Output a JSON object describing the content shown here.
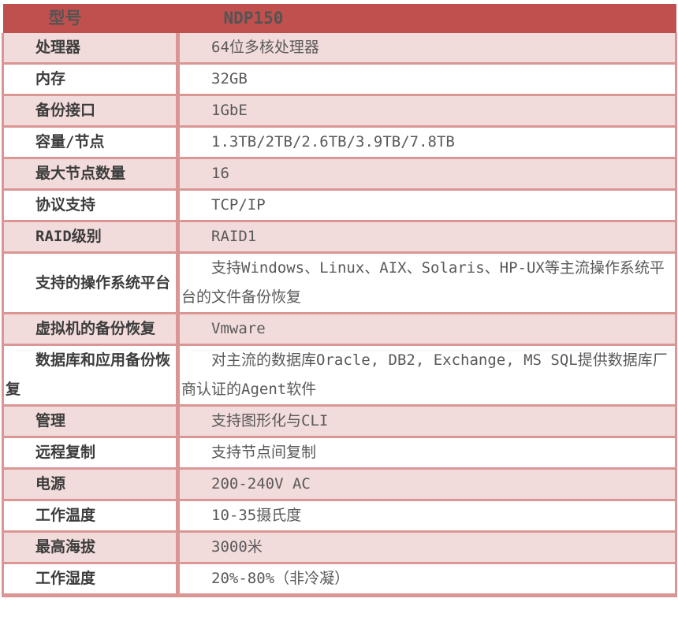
{
  "table": {
    "header": {
      "label": "型号",
      "value": "NDP150"
    },
    "rows": [
      {
        "label": "处理器",
        "value": "64位多核处理器"
      },
      {
        "label": "内存",
        "value": "32GB"
      },
      {
        "label": "备份接口",
        "value": "1GbE"
      },
      {
        "label": "容量/节点",
        "value": "1.3TB/2TB/2.6TB/3.9TB/7.8TB"
      },
      {
        "label": "最大节点数量",
        "value": "16"
      },
      {
        "label": "协议支持",
        "value": "TCP/IP"
      },
      {
        "label": "RAID级别",
        "value": "RAID1"
      },
      {
        "label": "支持的操作系统平台",
        "value": "支持Windows、Linux、AIX、Solaris、HP-UX等主流操作系统平台的文件备份恢复"
      },
      {
        "label": "虚拟机的备份恢复",
        "value": "Vmware"
      },
      {
        "label": "数据库和应用备份恢复",
        "value": "对主流的数据库Oracle, DB2, Exchange, MS SQL提供数据库厂商认证的Agent软件"
      },
      {
        "label": "管理",
        "value": "支持图形化与CLI"
      },
      {
        "label": "远程复制",
        "value": "支持节点间复制"
      },
      {
        "label": "电源",
        "value": "200-240V AC"
      },
      {
        "label": "工作温度",
        "value": "10-35摄氏度"
      },
      {
        "label": "最高海拔",
        "value": "3000米"
      },
      {
        "label": "工作湿度",
        "value": "20%-80%（非冷凝）"
      }
    ],
    "colors": {
      "header_bg": "#C0504D",
      "header_text": "#545454",
      "row_alt_bg": "#F2DCDB",
      "row_bg": "#FFFFFF",
      "border": "#D99694",
      "label_text": "#3C3C3C",
      "value_text": "#595959"
    }
  }
}
